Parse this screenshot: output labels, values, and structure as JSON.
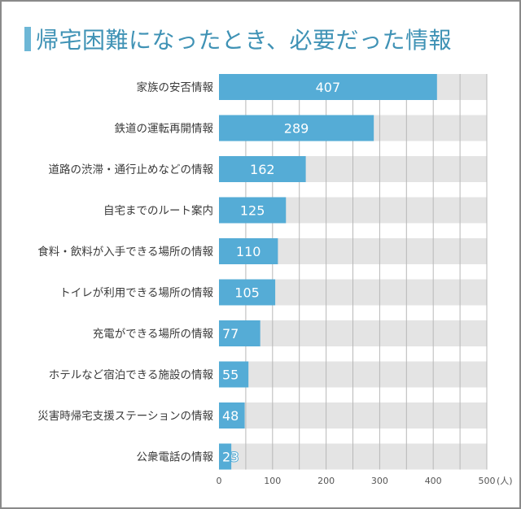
{
  "title": "帰宅困難になったとき、必要だった情報",
  "colors": {
    "bar": "#55acd6",
    "track": "#e4e4e4",
    "grid": "#b8b8b8",
    "title": "#3f92b5"
  },
  "chart_data": {
    "type": "bar",
    "orientation": "horizontal",
    "title": "帰宅困難になったとき、必要だった情報",
    "categories": [
      "家族の安否情報",
      "鉄道の運転再開情報",
      "道路の渋滞・通行止めなどの情報",
      "自宅までのルート案内",
      "食料・飲料が入手できる場所の情報",
      "トイレが利用できる場所の情報",
      "充電ができる場所の情報",
      "ホテルなど宿泊できる施設の情報",
      "災害時帰宅支援ステーションの情報",
      "公衆電話の情報"
    ],
    "values": [
      407,
      289,
      162,
      125,
      110,
      105,
      77,
      55,
      48,
      23
    ],
    "xlim": [
      0,
      500
    ],
    "xticks": [
      "0",
      "100",
      "200",
      "300",
      "400",
      "500"
    ],
    "xtick_values": [
      0,
      100,
      200,
      300,
      400,
      500
    ],
    "unit_label": "(人)",
    "grid_step": 50,
    "grid": true
  }
}
